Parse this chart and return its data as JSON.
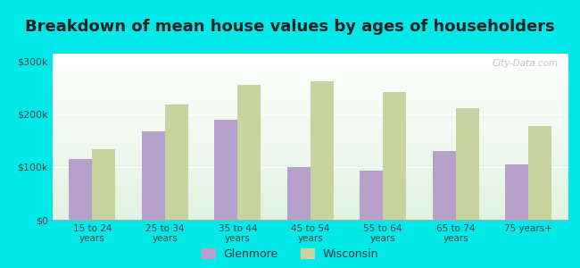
{
  "title": "Breakdown of mean house values by ages of householders",
  "categories": [
    "15 to 24\nyears",
    "25 to 34\nyears",
    "35 to 44\nyears",
    "45 to 54\nyears",
    "55 to 64\nyears",
    "65 to 74\nyears",
    "75 years+"
  ],
  "glenmore_values": [
    115000,
    167000,
    190000,
    100000,
    93000,
    130000,
    105000
  ],
  "wisconsin_values": [
    133000,
    218000,
    255000,
    262000,
    242000,
    212000,
    178000
  ],
  "glenmore_color": "#b8a0cc",
  "wisconsin_color": "#c8d4a0",
  "background_color": "#00e8e8",
  "yticks": [
    0,
    100000,
    200000,
    300000
  ],
  "ytick_labels": [
    "$0",
    "$100k",
    "$200k",
    "$300k"
  ],
  "ylim": [
    0,
    315000
  ],
  "title_fontsize": 13,
  "legend_labels": [
    "Glenmore",
    "Wisconsin"
  ],
  "watermark": "City-Data.com"
}
